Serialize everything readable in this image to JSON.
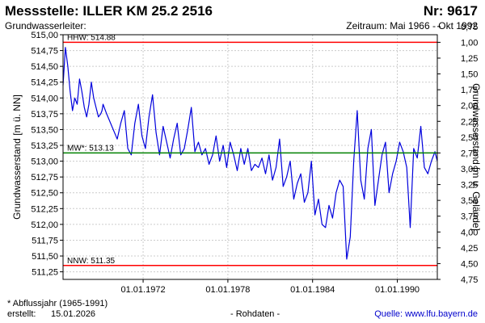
{
  "header": {
    "title": "Messstelle: ILLER KM 25.2 2516",
    "station_number": "Nr: 9617",
    "aquifer_label": "Grundwasserleiter:",
    "period": "Zeitraum: Mai 1966 - Okt 1992"
  },
  "footer": {
    "footnote": "* Abflussjahr (1965-1991)",
    "created_label": "erstellt:",
    "created_date": "15.01.2026",
    "raw_data": "- Rohdaten -",
    "source": "Quelle: www.lfu.bayern.de"
  },
  "colors": {
    "series": "#0000dd",
    "extreme_lines": "#ff0000",
    "mean_line": "#008000",
    "grid": "#cccccc",
    "source_link": "#0000cc"
  },
  "chart_data": {
    "type": "line",
    "ylabel_left": "Grundwasserstand [m ü. NN]",
    "ylabel_right": "Grundwasserstand [m u. Gelände]",
    "ylim": [
      511.13,
      515.0
    ],
    "yticks_left": [
      "515,00",
      "514,75",
      "514,50",
      "514,25",
      "514,00",
      "513,75",
      "513,50",
      "513,25",
      "513,00",
      "512,75",
      "512,50",
      "512,25",
      "512,00",
      "511,75",
      "511,50",
      "511,25"
    ],
    "right_axis_ground_level": 515.88,
    "yticks_right": [
      "0,75",
      "1,00",
      "1,25",
      "1,50",
      "1,75",
      "2,00",
      "2,25",
      "2,50",
      "2,75",
      "3,00",
      "3,25",
      "3,50",
      "3,75",
      "4,00",
      "4,25",
      "4,50",
      "4,75"
    ],
    "xlim": [
      "1966-05-01",
      "1992-10-31"
    ],
    "xtick_labels": [
      "01.01.1972",
      "01.01.1978",
      "01.01.1984",
      "01.01.1990"
    ],
    "grid": true,
    "reference_lines": [
      {
        "label": "HHW: 514.88",
        "value": 514.88
      },
      {
        "label": "MW*: 513.13",
        "value": 513.13
      },
      {
        "label": "NNW: 511.35",
        "value": 511.35
      }
    ],
    "series": [
      {
        "x": [
          "1966-05-01",
          "1966-07-01",
          "1966-09-01",
          "1966-11-01",
          "1967-01-01",
          "1967-03-01",
          "1967-05-01",
          "1967-07-01",
          "1967-09-01",
          "1967-11-01",
          "1968-01-01",
          "1968-03-01",
          "1968-05-01",
          "1968-07-01",
          "1968-09-01",
          "1968-11-01",
          "1969-01-01",
          "1969-02-01",
          "1969-03-01",
          "1969-06-01",
          "1970-03-01",
          "1970-06-01",
          "1970-09-01",
          "1970-12-01",
          "1971-03-01",
          "1971-06-01",
          "1971-09-01",
          "1971-12-01",
          "1972-03-01",
          "1972-06-01",
          "1972-09-01",
          "1972-12-01",
          "1973-03-01",
          "1973-06-01",
          "1973-09-01",
          "1973-12-01",
          "1974-03-01",
          "1974-06-01",
          "1974-09-01",
          "1974-12-01",
          "1975-03-01",
          "1975-06-01",
          "1975-09-01",
          "1975-12-01",
          "1976-03-01",
          "1976-06-01",
          "1976-09-01",
          "1976-12-01",
          "1977-03-01",
          "1977-06-01",
          "1977-09-01",
          "1977-12-01",
          "1978-03-01",
          "1978-06-01",
          "1978-09-01",
          "1978-12-01",
          "1979-03-01",
          "1979-06-01",
          "1979-09-01",
          "1979-12-01",
          "1980-03-01",
          "1980-06-01",
          "1980-09-01",
          "1980-12-01",
          "1981-03-01",
          "1981-06-01",
          "1981-09-01",
          "1981-12-01",
          "1982-03-01",
          "1982-06-01",
          "1982-09-01",
          "1982-12-01",
          "1983-03-01",
          "1983-06-01",
          "1983-09-01",
          "1983-12-01",
          "1984-03-01",
          "1984-06-01",
          "1984-09-01",
          "1984-12-01",
          "1985-03-01",
          "1985-06-01",
          "1985-09-01",
          "1985-12-01",
          "1986-03-01",
          "1986-06-01",
          "1986-09-01",
          "1986-12-01",
          "1987-03-01",
          "1987-06-01",
          "1987-09-01",
          "1987-12-01",
          "1988-03-01",
          "1988-06-01",
          "1988-09-01",
          "1988-12-01",
          "1989-03-01",
          "1989-06-01",
          "1989-09-01",
          "1989-12-01",
          "1990-03-01",
          "1990-06-01",
          "1990-09-01",
          "1990-12-01",
          "1991-03-01",
          "1991-06-01",
          "1991-09-01",
          "1991-12-01",
          "1992-03-01",
          "1992-06-01",
          "1992-09-01",
          "1992-10-31"
        ],
        "y": [
          514.2,
          514.8,
          514.5,
          514.1,
          513.8,
          514.0,
          513.9,
          514.3,
          514.1,
          513.85,
          513.7,
          513.9,
          514.25,
          514.0,
          513.85,
          513.7,
          513.75,
          513.8,
          513.9,
          513.75,
          513.35,
          513.6,
          513.8,
          513.2,
          513.1,
          513.6,
          513.9,
          513.4,
          513.2,
          513.7,
          514.05,
          513.45,
          513.1,
          513.55,
          513.3,
          513.05,
          513.35,
          513.6,
          513.1,
          513.2,
          513.5,
          513.85,
          513.15,
          513.3,
          513.1,
          513.2,
          512.95,
          513.1,
          513.4,
          513.0,
          513.25,
          512.9,
          513.3,
          513.1,
          512.85,
          513.2,
          512.95,
          513.2,
          512.85,
          512.95,
          512.9,
          513.05,
          512.8,
          513.1,
          512.7,
          512.9,
          513.35,
          512.6,
          512.75,
          513.0,
          512.4,
          512.65,
          512.8,
          512.35,
          512.5,
          513.0,
          512.15,
          512.4,
          512.0,
          511.95,
          512.3,
          512.1,
          512.5,
          512.7,
          512.6,
          511.45,
          511.8,
          513.0,
          513.8,
          512.7,
          512.4,
          513.2,
          513.5,
          512.3,
          512.7,
          513.1,
          513.3,
          512.5,
          512.8,
          513.0,
          513.3,
          513.15,
          512.9,
          511.95,
          513.2,
          513.05,
          513.55,
          512.9,
          512.8,
          513.0,
          513.15,
          513.0
        ]
      }
    ]
  }
}
